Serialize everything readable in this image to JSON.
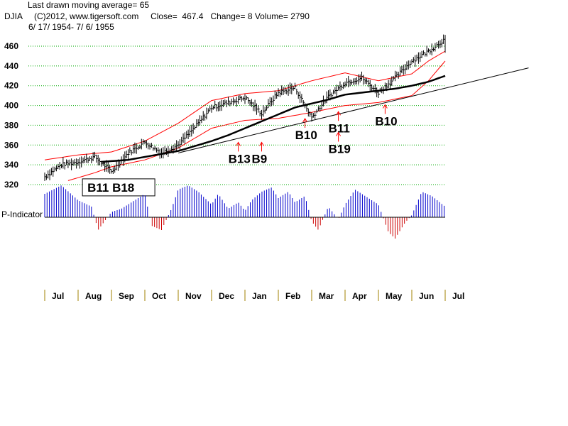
{
  "header": {
    "line1": "Last drawn moving average= 65",
    "line2": "DJIA     (C)2012, www.tigersoft.com     Close=  467.4   Change= 8 Volume= 2790",
    "line3": "6/ 17/ 1954- 7/ 6/ 1955"
  },
  "indicator_label": "P-Indicator",
  "colors": {
    "grid": "#00aa00",
    "band": "#ff0000",
    "ma": "#000000",
    "price": "#000000",
    "indicator_pos": "#0000cc",
    "indicator_neg": "#cc0000",
    "trendline": "#000000"
  },
  "chart_data": {
    "type": "line",
    "title": "DJIA 6/17/1954 - 7/6/1955",
    "ylim": [
      320,
      470
    ],
    "y_ticks": [
      "460",
      "440",
      "420",
      "400",
      "380",
      "360",
      "340",
      "320"
    ],
    "x_month_labels": [
      "Jul",
      "Aug",
      "Sep",
      "Oct",
      "Nov",
      "Dec",
      "Jan",
      "Feb",
      "Mar",
      "Apr",
      "May",
      "Jun",
      "Jul"
    ],
    "moving_average_length": 65,
    "close": 467.4,
    "change": 8,
    "volume": 2790,
    "series": [
      {
        "name": "DJIA",
        "x": [
          0,
          0.5,
          1,
          1.5,
          2,
          2.5,
          3,
          3.5,
          4,
          4.5,
          5,
          5.5,
          6,
          6.5,
          7,
          7.5,
          8,
          8.5,
          9,
          9.5,
          10,
          10.5,
          11,
          11.5,
          12
        ],
        "values": [
          328,
          340,
          343,
          348,
          333,
          352,
          363,
          352,
          360,
          378,
          398,
          403,
          408,
          392,
          413,
          418,
          388,
          409,
          423,
          428,
          413,
          428,
          445,
          455,
          467.4
        ]
      },
      {
        "name": "65-day MA",
        "x": [
          1.7,
          2.5,
          3,
          3.5,
          4,
          4.5,
          5,
          5.5,
          6,
          6.5,
          7,
          7.5,
          8,
          8.5,
          9,
          9.5,
          10,
          10.5,
          11,
          11.5,
          12
        ],
        "values": [
          343,
          345,
          348,
          351,
          354,
          359,
          364,
          370,
          377,
          384,
          391,
          398,
          402,
          406,
          411,
          413,
          415,
          417,
          420,
          424,
          430
        ]
      },
      {
        "name": "Upper band",
        "x": [
          0,
          1,
          2,
          3,
          4,
          5,
          6,
          7,
          8,
          9,
          10,
          11,
          11.5,
          12
        ],
        "values": [
          345,
          350,
          353,
          364,
          382,
          405,
          412,
          415,
          425,
          433,
          425,
          432,
          445,
          455
        ]
      },
      {
        "name": "Lower band",
        "x": [
          0.7,
          1.5,
          2,
          3,
          4,
          5,
          6,
          7,
          8,
          9,
          10,
          11,
          11.5,
          12
        ],
        "values": [
          324,
          332,
          338,
          345,
          357,
          377,
          385,
          387,
          393,
          400,
          403,
          410,
          425,
          445
        ]
      },
      {
        "name": "Trendline",
        "x": [
          4,
          14.5
        ],
        "values": [
          352,
          438
        ]
      }
    ],
    "indicator": {
      "name": "P-Indicator",
      "x": [
        0,
        0.5,
        1,
        1.4,
        1.6,
        2,
        2.3,
        2.6,
        3,
        3.2,
        3.5,
        3.8,
        4,
        4.3,
        4.6,
        5,
        5.2,
        5.5,
        5.8,
        6,
        6.2,
        6.5,
        6.8,
        7,
        7.3,
        7.5,
        7.8,
        8,
        8.2,
        8.5,
        8.8,
        9,
        9.3,
        9.6,
        10,
        10.3,
        10.5,
        10.8,
        11,
        11.3,
        11.6,
        12
      ],
      "values": [
        22,
        30,
        16,
        10,
        -12,
        5,
        8,
        14,
        22,
        -8,
        -12,
        8,
        26,
        30,
        24,
        12,
        22,
        8,
        14,
        6,
        16,
        24,
        28,
        18,
        24,
        14,
        20,
        -4,
        -12,
        10,
        -2,
        12,
        26,
        20,
        12,
        -14,
        -20,
        -5,
        2,
        24,
        20,
        10
      ]
    },
    "signals": [
      {
        "label": "B11 B18",
        "x": 2.3,
        "y": 333,
        "boxed": true
      },
      {
        "label": "B13",
        "x": 5.8,
        "y": 352,
        "boxed": false
      },
      {
        "label": "B9",
        "x": 6.5,
        "y": 352,
        "boxed": false
      },
      {
        "label": "B10",
        "x": 7.8,
        "y": 376,
        "boxed": false
      },
      {
        "label": "B11",
        "x": 8.8,
        "y": 383,
        "boxed": false
      },
      {
        "label": "B19",
        "x": 8.8,
        "y": 362,
        "boxed": false
      },
      {
        "label": "B10",
        "x": 10.2,
        "y": 390,
        "boxed": false
      }
    ]
  }
}
